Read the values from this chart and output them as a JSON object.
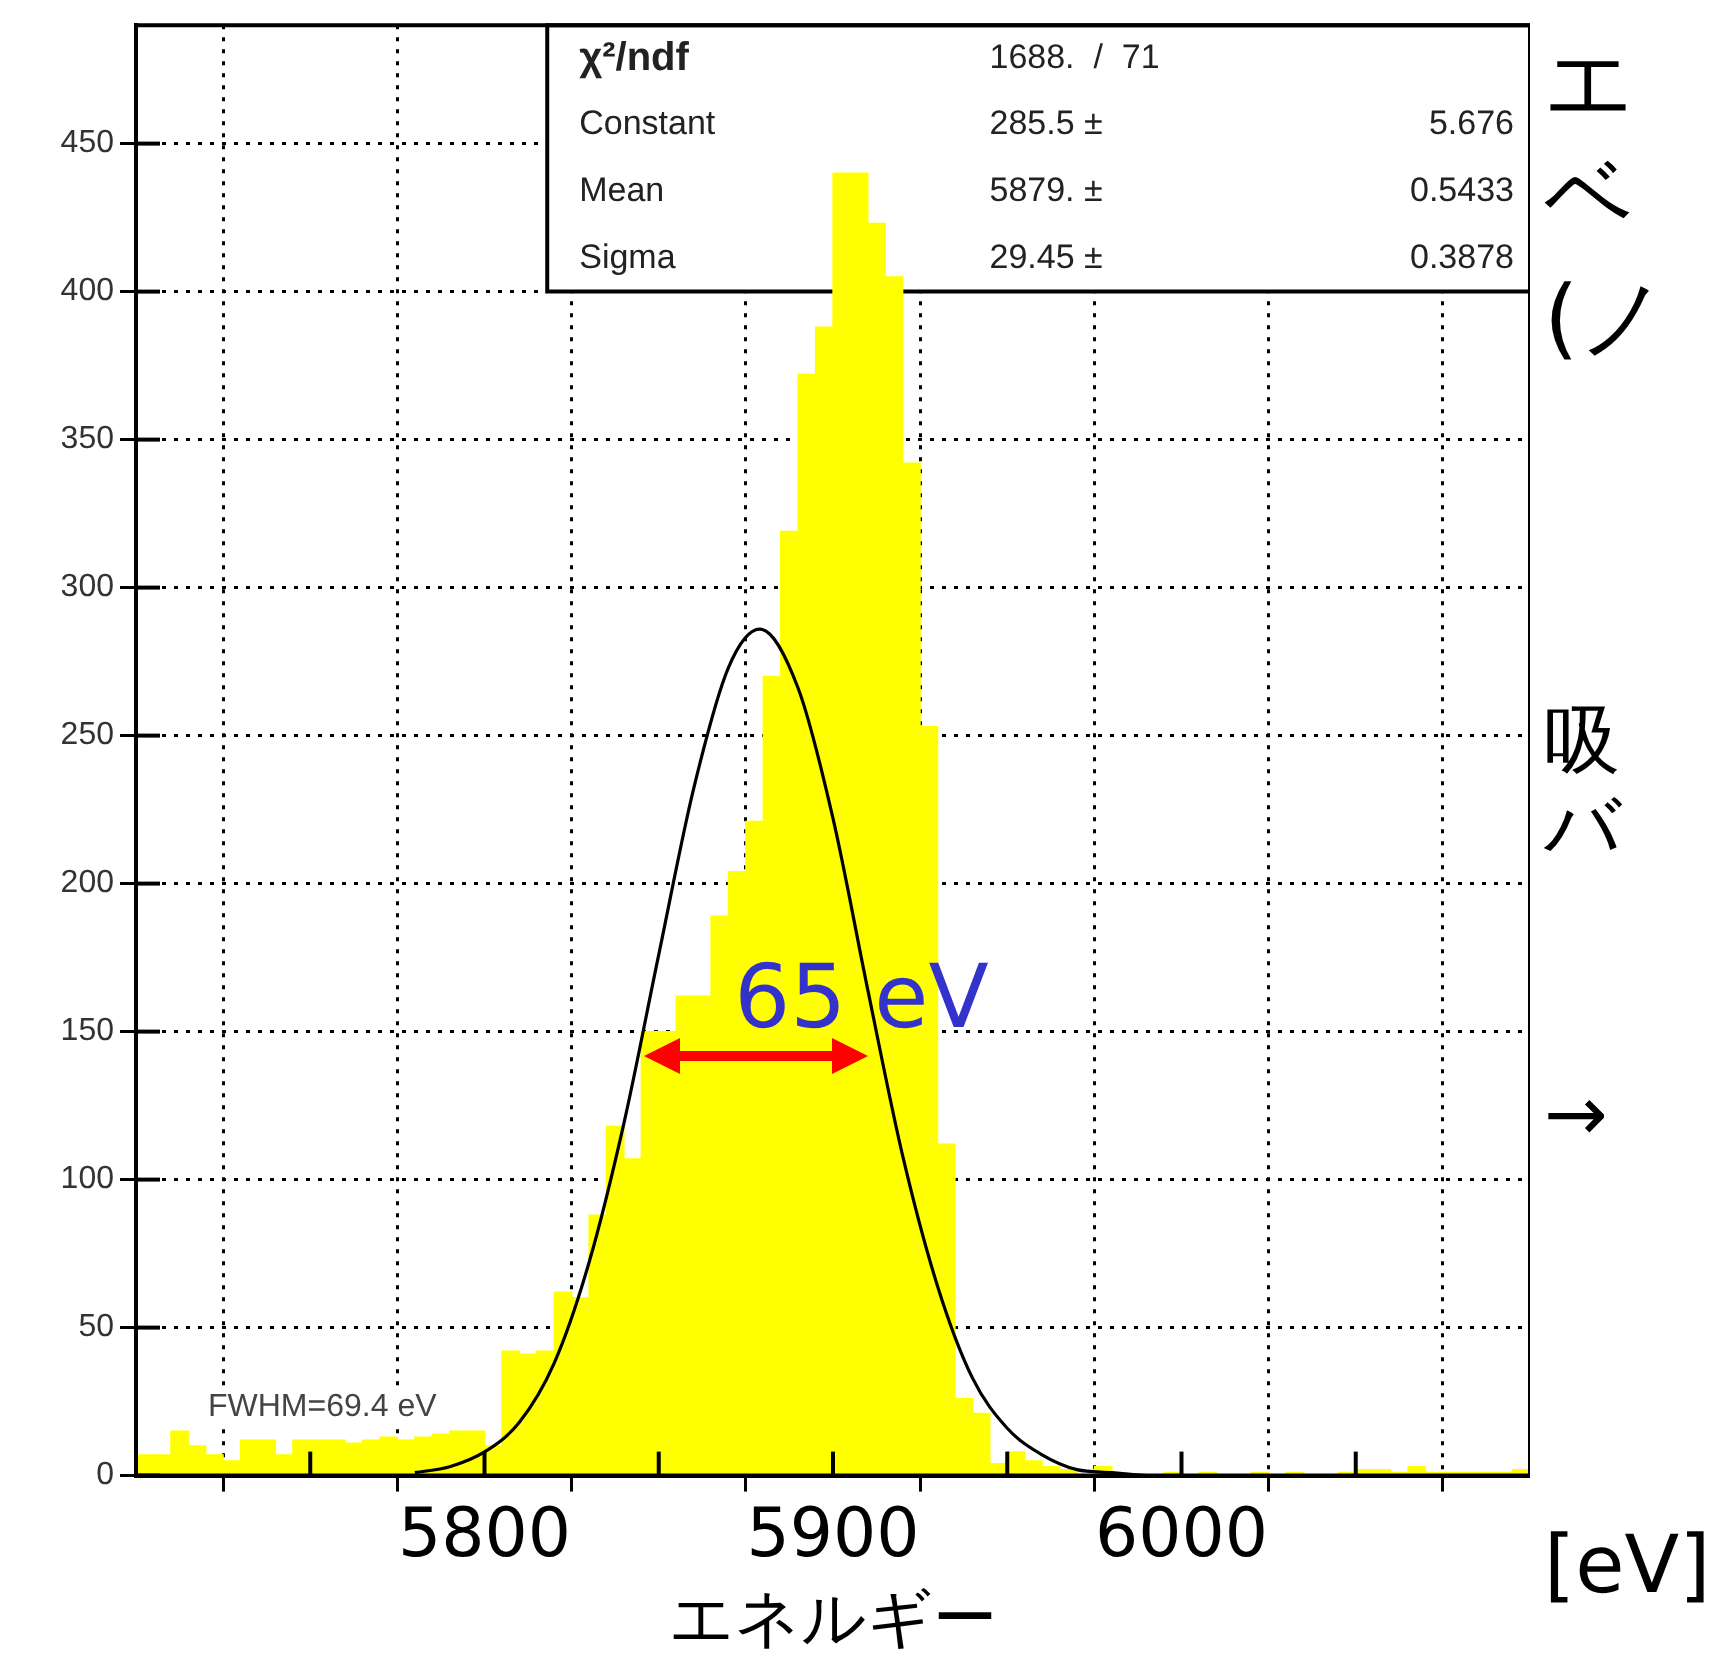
{
  "chart_data": {
    "type": "histogram",
    "bins": [
      5700,
      5705,
      5710,
      5715,
      5720,
      5725,
      5730,
      5735,
      5740,
      5745,
      5750,
      5755,
      5760,
      5765,
      5770,
      5775,
      5780,
      5785,
      5790,
      5795,
      5800,
      5805,
      5810,
      5815,
      5820,
      5825,
      5830,
      5835,
      5840,
      5845,
      5850,
      5855,
      5860,
      5865,
      5870,
      5875,
      5880,
      5885,
      5890,
      5895,
      5900,
      5905,
      5910,
      5915,
      5920,
      5925,
      5930,
      5935,
      5940,
      5945,
      5950,
      5955,
      5960,
      5965,
      5970,
      5975,
      5980,
      5985,
      5990,
      5995,
      6000,
      6005,
      6010,
      6015,
      6020,
      6025,
      6030,
      6035,
      6040,
      6045,
      6050,
      6055,
      6060,
      6065,
      6070,
      6075,
      6080,
      6085,
      6090,
      6095,
      6100
    ],
    "values": [
      7,
      7,
      15,
      10,
      7,
      5,
      12,
      12,
      7,
      12,
      12,
      12,
      11,
      12,
      13,
      12,
      13,
      14,
      15,
      15,
      10,
      42,
      41,
      42,
      62,
      60,
      88,
      118,
      107,
      150,
      150,
      162,
      162,
      189,
      204,
      221,
      270,
      319,
      372,
      388,
      440,
      440,
      423,
      405,
      342,
      253,
      112,
      26,
      21,
      4,
      8,
      5,
      3,
      2,
      null,
      3,
      null,
      null,
      0,
      1,
      0,
      1,
      0,
      0,
      1,
      0,
      1,
      0,
      0,
      1,
      2,
      2,
      1,
      3,
      1,
      1,
      1,
      1,
      1,
      2
    ],
    "color": "#ffff00",
    "series": [
      {
        "type": "line",
        "color": "#000000",
        "x": [
          5780,
          5790,
          5800,
          5810,
          5820,
          5830,
          5840,
          5850,
          5860,
          5870,
          5879,
          5890,
          5900,
          5910,
          5920,
          5930,
          5940,
          5950,
          5960,
          5970,
          5980,
          5990
        ],
        "values": [
          1,
          3,
          8,
          18,
          38,
          72,
          119,
          176,
          232,
          273,
          286,
          266,
          222,
          164,
          108,
          64,
          33,
          16,
          7,
          2,
          1,
          0
        ]
      }
    ],
    "marker": "none",
    "xlabel": "エネルギー",
    "xlim": [
      5700,
      6100
    ],
    "xticks": [
      {
        "value": 5750,
        "label": null
      },
      5800,
      {
        "value": 5850,
        "label": null
      },
      5900,
      {
        "value": 5950,
        "label": null
      },
      6000,
      {
        "value": 6050,
        "label": null
      }
    ],
    "ylim": [
      0,
      490
    ],
    "yticks": [
      0,
      50,
      100,
      150,
      200,
      250,
      300,
      350,
      400,
      450
    ],
    "grid": true,
    "legend": false,
    "annotations": [
      "χ²/ndf",
      "1688.  /  71",
      "Constant",
      "285.5 ±",
      "5.676",
      "Mean",
      "5879. ±",
      "0.5433",
      "Sigma",
      "29.45 ±",
      "0.3878",
      "FWHM=69.4 eV",
      {
        "text": "65 eV",
        "x": 5878,
        "y": 142
      },
      "[eV]",
      "エ",
      "ベ",
      "(ノ",
      "吸",
      "バ",
      "→"
    ]
  }
}
